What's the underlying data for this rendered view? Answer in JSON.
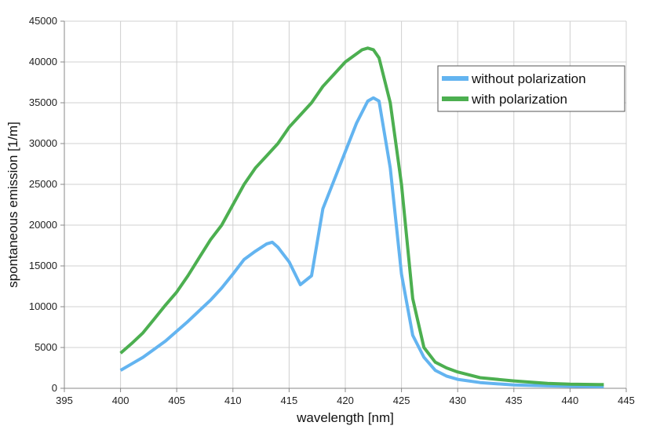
{
  "chart_data": {
    "type": "line",
    "xlabel": "wavelength [nm]",
    "ylabel": "spontaneous emission [1/m]",
    "xlim": [
      395,
      445
    ],
    "ylim": [
      0,
      45000
    ],
    "xticks": [
      "395",
      "400",
      "405",
      "410",
      "415",
      "420",
      "425",
      "430",
      "435",
      "440",
      "445"
    ],
    "yticks": [
      "0",
      "5000",
      "10000",
      "15000",
      "20000",
      "25000",
      "30000",
      "35000",
      "40000",
      "45000"
    ],
    "grid": true,
    "legend_position": "top-right",
    "series": [
      {
        "name": "without polarization",
        "color": "#63b4f0",
        "x": [
          400,
          401,
          402,
          403,
          404,
          405,
          406,
          407,
          408,
          409,
          410,
          411,
          412,
          413,
          413.5,
          414,
          415,
          416,
          417,
          418,
          419,
          420,
          421,
          422,
          422.5,
          423,
          424,
          425,
          426,
          427,
          428,
          429,
          430,
          432,
          435,
          438,
          440,
          443
        ],
        "values": [
          2200,
          3000,
          3800,
          4800,
          5800,
          7000,
          8200,
          9500,
          10800,
          12300,
          14000,
          15800,
          16800,
          17700,
          17900,
          17300,
          15500,
          12700,
          13800,
          22000,
          25500,
          29000,
          32500,
          35200,
          35600,
          35200,
          27000,
          14000,
          6500,
          3800,
          2200,
          1500,
          1100,
          700,
          400,
          300,
          250,
          200
        ]
      },
      {
        "name": "with polarization",
        "color": "#4caf50",
        "x": [
          400,
          401,
          402,
          403,
          404,
          405,
          406,
          407,
          408,
          409,
          410,
          411,
          412,
          413,
          414,
          415,
          416,
          417,
          418,
          419,
          420,
          421,
          421.5,
          422,
          422.5,
          423,
          424,
          425,
          426,
          427,
          428,
          429,
          430,
          432,
          435,
          438,
          440,
          443
        ],
        "values": [
          4300,
          5500,
          6800,
          8500,
          10200,
          11800,
          13800,
          16000,
          18200,
          20000,
          22500,
          25000,
          27000,
          28500,
          30000,
          32000,
          33500,
          35000,
          37000,
          38500,
          40000,
          41000,
          41500,
          41700,
          41500,
          40500,
          35000,
          25000,
          11000,
          5000,
          3200,
          2500,
          2000,
          1300,
          900,
          600,
          500,
          450
        ]
      }
    ]
  }
}
